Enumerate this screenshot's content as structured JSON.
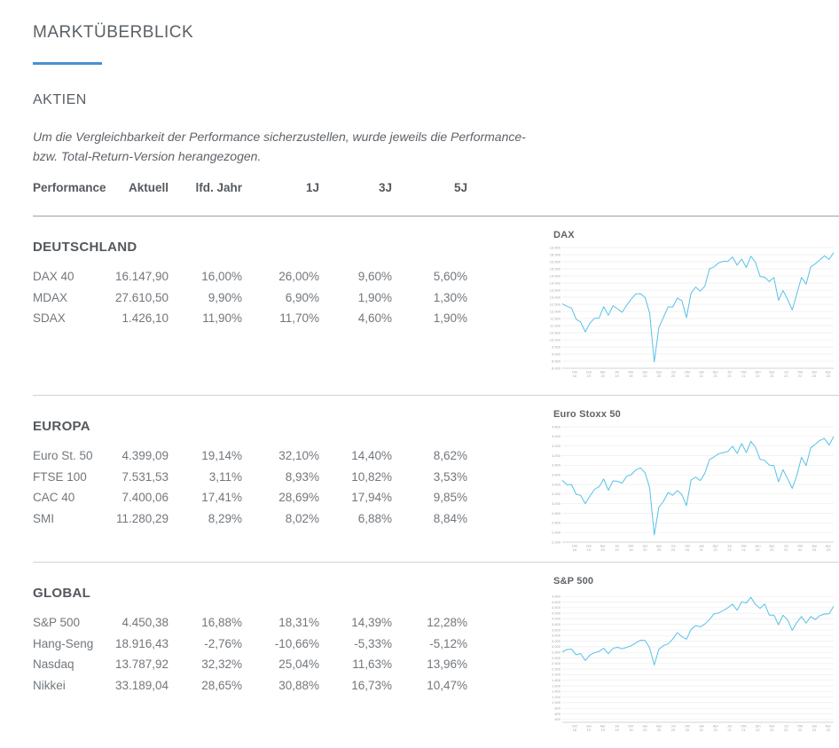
{
  "page": {
    "title": "MARKTÜBERBLICK",
    "section": "AKTIEN",
    "disclaimer": "Um die Vergleichbarkeit der Performance sicherzustellen, wurde jeweils die Performance-\nbzw. Total-Return-Version herangezogen."
  },
  "colors": {
    "accent_blue": "#4a90d2",
    "chart_line": "#56c2e7",
    "gridline": "#ededed",
    "axis": "#c9c9c9",
    "axis_label": "#a8a8a8"
  },
  "table": {
    "headers": [
      "Performance",
      "Aktuell",
      "lfd. Jahr",
      "1J",
      "3J",
      "5J"
    ],
    "groups": [
      {
        "name": "DEUTSCHLAND",
        "rows": [
          [
            "DAX 40",
            "16.147,90",
            "16,00%",
            "26,00%",
            "9,60%",
            "5,60%"
          ],
          [
            "MDAX",
            "27.610,50",
            "9,90%",
            "6,90%",
            "1,90%",
            "1,30%"
          ],
          [
            "SDAX",
            "1.426,10",
            "11,90%",
            "11,70%",
            "4,60%",
            "1,90%"
          ]
        ]
      },
      {
        "name": "EUROPA",
        "rows": [
          [
            "Euro St. 50",
            "4.399,09",
            "19,14%",
            "32,10%",
            "14,40%",
            "8,62%"
          ],
          [
            "FTSE 100",
            "7.531,53",
            "3,11%",
            "8,93%",
            "10,82%",
            "3,53%"
          ],
          [
            "CAC 40",
            "7.400,06",
            "17,41%",
            "28,69%",
            "17,94%",
            "9,85%"
          ],
          [
            "SMI",
            "11.280,29",
            "8,29%",
            "8,02%",
            "6,88%",
            "8,84%"
          ]
        ]
      },
      {
        "name": "GLOBAL",
        "rows": [
          [
            "S&P 500",
            "4.450,38",
            "16,88%",
            "18,31%",
            "14,39%",
            "12,28%"
          ],
          [
            "Hang-Seng",
            "18.916,43",
            "-2,76%",
            "-10,66%",
            "-5,33%",
            "-5,12%"
          ],
          [
            "Nasdaq",
            "13.787,92",
            "32,32%",
            "25,04%",
            "11,63%",
            "13,96%"
          ],
          [
            "Nikkei",
            "33.189,04",
            "28,65%",
            "30,88%",
            "16,73%",
            "10,47%"
          ]
        ]
      }
    ]
  },
  "chart_data": [
    {
      "type": "line",
      "title": "DAX",
      "ylim": [
        8000,
        16500
      ],
      "grid_step": 500,
      "x_ticks": [
        "Okt 18",
        "Jan 19",
        "Apr 19",
        "Jul 19",
        "Okt 19",
        "Jan 20",
        "Apr 20",
        "Jul 20",
        "Okt 20",
        "Jan 21",
        "Apr 21",
        "Jul 21",
        "Okt 21",
        "Jan 22",
        "Apr 22",
        "Jul 22",
        "Okt 22",
        "Jan 23",
        "Apr 23"
      ],
      "values": [
        12540,
        12360,
        12240,
        11450,
        11260,
        10560,
        11170,
        11520,
        11530,
        12340,
        11730,
        12400,
        12190,
        11940,
        12430,
        12870,
        13240,
        13250,
        12980,
        11890,
        8450,
        10860,
        11590,
        12310,
        12310,
        12945,
        12760,
        11560,
        13290,
        13720,
        13430,
        13790,
        15010,
        15140,
        15420,
        15530,
        15540,
        15840,
        15260,
        15690,
        15100,
        15885,
        15470,
        14460,
        14410,
        14100,
        14390,
        12780,
        13480,
        12835,
        12110,
        13250,
        14400,
        13920,
        15130,
        15365,
        15630,
        15920,
        15660,
        16148
      ]
    },
    {
      "type": "line",
      "title": "Euro Stoxx 50",
      "ylim": [
        2200,
        4600
      ],
      "grid_step": 200,
      "x_ticks": [
        "Okt 18",
        "Jan 19",
        "Apr 19",
        "Jul 19",
        "Okt 19",
        "Jan 20",
        "Apr 20",
        "Jul 20",
        "Okt 20",
        "Jan 21",
        "Apr 21",
        "Jul 21",
        "Okt 21",
        "Jan 22",
        "Apr 22",
        "Jul 22",
        "Okt 22",
        "Jan 23",
        "Apr 23"
      ],
      "values": [
        3485,
        3393,
        3399,
        3197,
        3173,
        3001,
        3159,
        3298,
        3352,
        3515,
        3280,
        3474,
        3467,
        3427,
        3569,
        3605,
        3704,
        3745,
        3641,
        3329,
        2350,
        2928,
        3050,
        3234,
        3174,
        3273,
        3194,
        2958,
        3493,
        3553,
        3481,
        3636,
        3919,
        3975,
        4039,
        4064,
        4089,
        4196,
        4048,
        4251,
        4063,
        4298,
        4175,
        3924,
        3903,
        3803,
        3789,
        3455,
        3708,
        3517,
        3318,
        3593,
        3965,
        3794,
        4163,
        4238,
        4315,
        4359,
        4218,
        4399
      ]
    },
    {
      "type": "line",
      "title": "S&P 500",
      "ylim": [
        300,
        4900
      ],
      "grid_step": 200,
      "x_ticks": [
        "Okt 18",
        "Jan 19",
        "Apr 19",
        "Jul 19",
        "Okt 19",
        "Jan 20",
        "Apr 20",
        "Jul 20",
        "Okt 20",
        "Jan 21",
        "Apr 21",
        "Jul 21",
        "Okt 21",
        "Jan 22",
        "Apr 22",
        "Jul 22",
        "Okt 22",
        "Jan 23",
        "Apr 23"
      ],
      "values": [
        2816,
        2902,
        2914,
        2712,
        2760,
        2507,
        2704,
        2784,
        2834,
        2946,
        2752,
        2942,
        2980,
        2926,
        2977,
        3038,
        3141,
        3231,
        3226,
        2954,
        2350,
        2912,
        3044,
        3100,
        3271,
        3500,
        3363,
        3270,
        3622,
        3756,
        3714,
        3811,
        3973,
        4181,
        4204,
        4298,
        4395,
        4523,
        4308,
        4605,
        4567,
        4766,
        4516,
        4374,
        4530,
        4132,
        4132,
        3785,
        4130,
        3955,
        3586,
        3872,
        4080,
        3840,
        4077,
        3970,
        4109,
        4169,
        4180,
        4450
      ]
    }
  ]
}
